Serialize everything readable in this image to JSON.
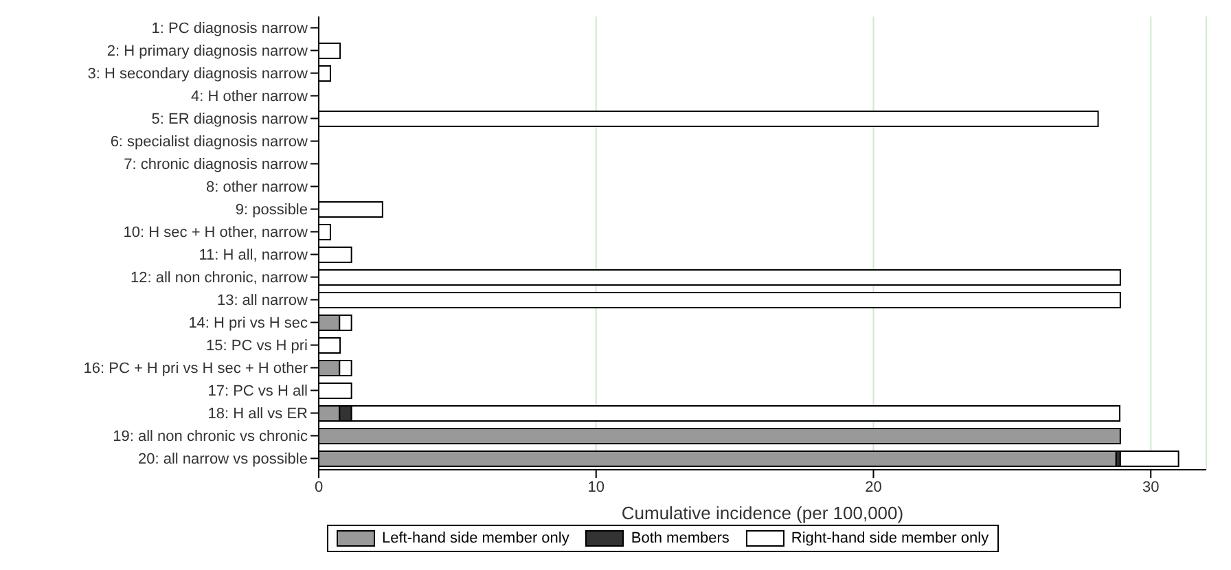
{
  "chart_data": {
    "type": "bar",
    "orientation": "horizontal",
    "stacked": true,
    "xlabel": "Cumulative incidence (per 100,000)",
    "categories": [
      "1: PC diagnosis narrow",
      "2: H primary diagnosis narrow",
      "3: H secondary diagnosis narrow",
      "4: H other narrow",
      "5: ER diagnosis narrow",
      "6: specialist diagnosis narrow",
      "7: chronic diagnosis narrow",
      "8: other narrow",
      "9: possible",
      "10: H sec + H other, narrow",
      "11: H all, narrow",
      "12: all non chronic, narrow",
      "13: all narrow",
      "14: H pri vs H sec",
      "15: PC vs H pri",
      "16: PC + H pri vs H sec + H other",
      "17: PC vs H all",
      "18: H all vs ER",
      "19: all non chronic vs chronic",
      "20: all narrow vs possible"
    ],
    "series": [
      {
        "name": "Left-hand side member only",
        "color": "#999999",
        "values": [
          null,
          null,
          null,
          null,
          null,
          null,
          null,
          null,
          null,
          null,
          null,
          null,
          null,
          0.75,
          null,
          0.75,
          null,
          0.75,
          28.9,
          28.75
        ]
      },
      {
        "name": "Both members",
        "color": "#333333",
        "values": [
          null,
          null,
          null,
          null,
          null,
          null,
          null,
          null,
          null,
          null,
          null,
          null,
          null,
          null,
          null,
          null,
          null,
          0.43,
          null,
          0.15
        ]
      },
      {
        "name": "Right-hand side member only",
        "color": "#ffffff",
        "values": [
          null,
          0.77,
          0.42,
          null,
          28.1,
          null,
          null,
          null,
          2.3,
          0.42,
          1.18,
          28.9,
          28.9,
          0.43,
          0.77,
          0.43,
          1.18,
          27.7,
          null,
          2.1
        ]
      }
    ],
    "xlim": [
      0,
      32
    ],
    "xticks": [
      0,
      10,
      20,
      30
    ],
    "grid": "x",
    "legend": "bottom"
  }
}
